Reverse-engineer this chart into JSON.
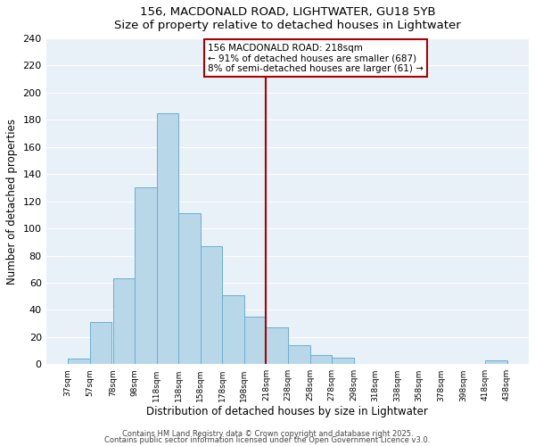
{
  "title": "156, MACDONALD ROAD, LIGHTWATER, GU18 5YB",
  "subtitle": "Size of property relative to detached houses in Lightwater",
  "xlabel": "Distribution of detached houses by size in Lightwater",
  "ylabel": "Number of detached properties",
  "bar_left_edges": [
    37,
    57,
    78,
    98,
    118,
    138,
    158,
    178,
    198,
    218,
    238,
    258,
    278,
    298,
    318,
    338,
    358,
    378,
    398,
    418
  ],
  "bar_heights": [
    4,
    31,
    63,
    130,
    185,
    111,
    87,
    51,
    35,
    27,
    14,
    7,
    5,
    0,
    0,
    0,
    0,
    0,
    0,
    3
  ],
  "bar_widths": [
    20,
    20,
    20,
    20,
    20,
    20,
    20,
    20,
    20,
    20,
    20,
    20,
    20,
    20,
    20,
    20,
    20,
    20,
    20,
    20
  ],
  "bar_color": "#b8d8ea",
  "bar_edgecolor": "#6aaed0",
  "reference_line_x": 218,
  "reference_line_color": "#aa0000",
  "annotation_line1": "156 MACDONALD ROAD: 218sqm",
  "annotation_line2": "← 91% of detached houses are smaller (687)",
  "annotation_line3": "8% of semi-detached houses are larger (61) →",
  "annotation_box_facecolor": "white",
  "annotation_box_edgecolor": "#aa0000",
  "tick_labels": [
    "37sqm",
    "57sqm",
    "78sqm",
    "98sqm",
    "118sqm",
    "138sqm",
    "158sqm",
    "178sqm",
    "198sqm",
    "218sqm",
    "238sqm",
    "258sqm",
    "278sqm",
    "298sqm",
    "318sqm",
    "338sqm",
    "358sqm",
    "378sqm",
    "398sqm",
    "418sqm",
    "438sqm"
  ],
  "tick_positions": [
    37,
    57,
    78,
    98,
    118,
    138,
    158,
    178,
    198,
    218,
    238,
    258,
    278,
    298,
    318,
    338,
    358,
    378,
    398,
    418,
    438
  ],
  "ylim": [
    0,
    240
  ],
  "xlim": [
    17,
    458
  ],
  "yticks": [
    0,
    20,
    40,
    60,
    80,
    100,
    120,
    140,
    160,
    180,
    200,
    220,
    240
  ],
  "bg_color": "#e8f0f8",
  "grid_color": "white",
  "footnote1": "Contains HM Land Registry data © Crown copyright and database right 2025.",
  "footnote2": "Contains public sector information licensed under the Open Government Licence v3.0."
}
